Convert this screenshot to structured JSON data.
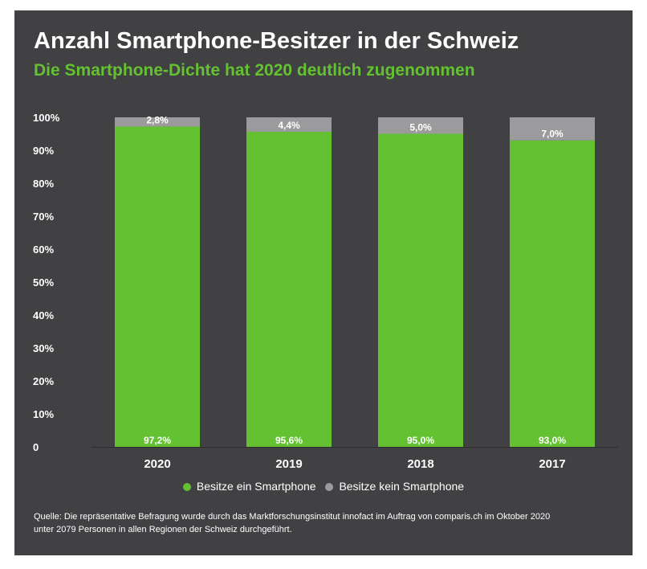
{
  "title": "Anzahl Smartphone-Besitzer in der Schweiz",
  "subtitle": "Die Smartphone-Dichte hat 2020 deutlich zugenommen",
  "colors": {
    "background": "#414143",
    "owns": "#63c132",
    "not_owns": "#9b9b9d",
    "text": "#ffffff"
  },
  "legend": [
    {
      "label": "Besitze ein Smartphone",
      "color": "#63c132"
    },
    {
      "label": "Besitze kein Smartphone",
      "color": "#9b9b9d"
    }
  ],
  "source": {
    "line1": "Quelle: Die repräsentative Befragung wurde durch das Marktforschungsinstitut innofact im Auftrag von comparis.ch im Oktober 2020",
    "line2": "unter 2079 Personen in allen Regionen der Schweiz durchgeführt."
  },
  "chart_data": {
    "type": "bar",
    "stacked": true,
    "title": "Anzahl Smartphone-Besitzer in der Schweiz",
    "subtitle": "Die Smartphone-Dichte hat 2020 deutlich zugenommen",
    "categories": [
      "2020",
      "2019",
      "2018",
      "2017"
    ],
    "series": [
      {
        "name": "Besitze ein Smartphone",
        "values": [
          97.2,
          95.6,
          95.0,
          93.0
        ],
        "labels": [
          "97,2%",
          "95,6%",
          "95,0%",
          "93,0%"
        ],
        "color": "#63c132"
      },
      {
        "name": "Besitze kein Smartphone",
        "values": [
          2.8,
          4.4,
          5.0,
          7.0
        ],
        "labels": [
          "2,8%",
          "4,4%",
          "5,0%",
          "7,0%"
        ],
        "color": "#9b9b9d"
      }
    ],
    "yticks": [
      {
        "value": 0,
        "label": "0"
      },
      {
        "value": 10,
        "label": "10%"
      },
      {
        "value": 20,
        "label": "20%"
      },
      {
        "value": 30,
        "label": "30%"
      },
      {
        "value": 40,
        "label": "40%"
      },
      {
        "value": 50,
        "label": "50%"
      },
      {
        "value": 60,
        "label": "60%"
      },
      {
        "value": 70,
        "label": "70%"
      },
      {
        "value": 80,
        "label": "80%"
      },
      {
        "value": 90,
        "label": "90%"
      },
      {
        "value": 100,
        "label": "100%"
      }
    ],
    "ylim": [
      0,
      100
    ],
    "grid": false,
    "legend_position": "bottom"
  }
}
